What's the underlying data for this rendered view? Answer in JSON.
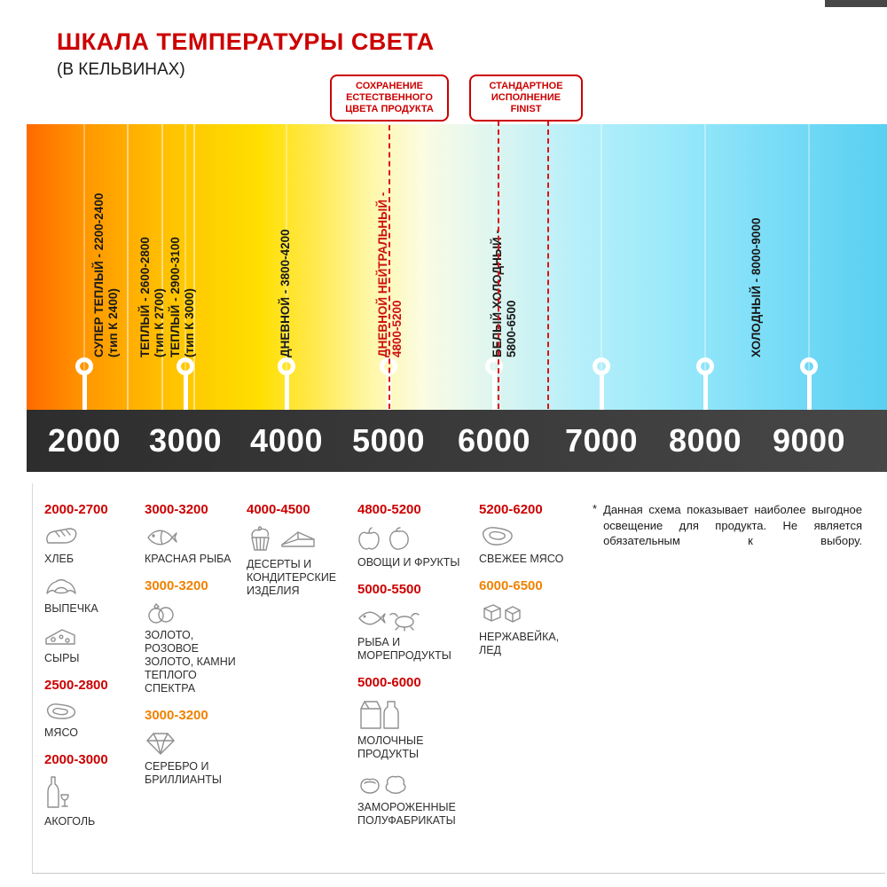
{
  "colors": {
    "accent_red": "#cc0000",
    "accent_orange": "#ef8200",
    "scale_bar_dark": "#3a3a3a",
    "warm_end": "#ff6a00",
    "cold_end": "#58d0f2"
  },
  "header": {
    "title": "ШКАЛА ТЕМПЕРАТУРЫ СВЕТА",
    "subtitle": "(В КЕЛЬВИНАХ)"
  },
  "callouts": [
    {
      "lines": [
        "СОХРАНЕНИЕ",
        "ЕСТЕСТВЕННОГО",
        "ЦВЕТА ПРОДУКТА"
      ]
    },
    {
      "lines": [
        "СТАНДАРТНОЕ",
        "ИСПОЛНЕНИЕ",
        "FINIST"
      ]
    }
  ],
  "scale": {
    "unit": "K",
    "ticks": [
      "2000",
      "3000",
      "4000",
      "5000",
      "6000",
      "7000",
      "8000",
      "9000"
    ],
    "zones": [
      {
        "label": "СУПЕР ТЕПЛЫЙ - 2200-2400",
        "sub": "(тип К 2400)",
        "red": false
      },
      {
        "label": "ТЕПЛЫЙ - 2600-2800",
        "sub": "(тип К 2700)",
        "red": false
      },
      {
        "label": "ТЕПЛЫЙ - 2900-3100",
        "sub": "(тип К 3000)",
        "red": false
      },
      {
        "label": "ДНЕВНОЙ - 3800-4200",
        "sub": "",
        "red": false
      },
      {
        "label": "ДНЕВНОЙ НЕЙТРАЛЬНЫЙ -",
        "sub": "4800-5200",
        "red": true
      },
      {
        "label": "БЕЛЫЙ ХОЛОДНЫЙ -",
        "sub": "5800-6500",
        "red": false
      },
      {
        "label": "ХОЛОДНЫЙ - 8000-9000",
        "sub": "",
        "red": false
      }
    ]
  },
  "products": {
    "columns": [
      {
        "groups": [
          {
            "range": "2000-2700",
            "color": "red",
            "items": [
              {
                "icon": "bread-icon",
                "label": "ХЛЕБ"
              },
              {
                "icon": "croissant-icon",
                "label": "ВЫПЕЧКА"
              },
              {
                "icon": "cheese-icon",
                "label": "СЫРЫ"
              }
            ]
          },
          {
            "range": "2500-2800",
            "color": "red",
            "items": [
              {
                "icon": "meat-icon",
                "label": "МЯСО"
              }
            ]
          },
          {
            "range": "2000-3000",
            "color": "red",
            "items": [
              {
                "icon": "alcohol-icon",
                "label": "АКОГОЛЬ"
              }
            ]
          }
        ]
      },
      {
        "groups": [
          {
            "range": "3000-3200",
            "color": "red",
            "items": [
              {
                "icon": "fish-icon",
                "label": "КРАСНАЯ РЫБА"
              }
            ]
          },
          {
            "range": "3000-3200",
            "color": "orange",
            "items": [
              {
                "icon": "rings-icon",
                "label": "ЗОЛОТО, РОЗОВОЕ ЗОЛОТО, КАМНИ ТЕПЛОГО СПЕКТРА"
              }
            ]
          },
          {
            "range": "3000-3200",
            "color": "orange",
            "items": [
              {
                "icon": "diamond-icon",
                "label": "СЕРЕБРО И БРИЛЛИАНТЫ"
              }
            ]
          }
        ]
      },
      {
        "groups": [
          {
            "range": "4000-4500",
            "color": "red",
            "items": [
              {
                "icon": "dessert-icon",
                "label": "ДЕСЕРТЫ И КОНДИТЕРСКИЕ ИЗДЕЛИЯ"
              }
            ]
          }
        ]
      },
      {
        "groups": [
          {
            "range": "4800-5200",
            "color": "red",
            "items": [
              {
                "icon": "fruits-icon",
                "label": "ОВОЩИ И ФРУКТЫ"
              }
            ]
          },
          {
            "range": "5000-5500",
            "color": "red",
            "items": [
              {
                "icon": "seafood-icon",
                "label": "РЫБА И МОРЕПРОДУКТЫ"
              }
            ]
          },
          {
            "range": "5000-6000",
            "color": "red",
            "items": [
              {
                "icon": "dairy-icon",
                "label": "МОЛОЧНЫЕ ПРОДУКТЫ"
              },
              {
                "icon": "frozen-icon",
                "label": "ЗАМОРОЖЕННЫЕ ПОЛУФАБРИКАТЫ"
              }
            ]
          }
        ]
      },
      {
        "groups": [
          {
            "range": "5200-6200",
            "color": "red",
            "items": [
              {
                "icon": "fresh-meat-icon",
                "label": "СВЕЖЕЕ МЯСО"
              }
            ]
          },
          {
            "range": "6000-6500",
            "color": "orange",
            "items": [
              {
                "icon": "ice-icon",
                "label": "НЕРЖАВЕЙКА, ЛЕД"
              }
            ]
          }
        ]
      }
    ]
  },
  "note": {
    "marker": "*",
    "text": "Данная схема показывает наиболее выгодное освещение для продукта. Не является обязательным к выбору."
  }
}
